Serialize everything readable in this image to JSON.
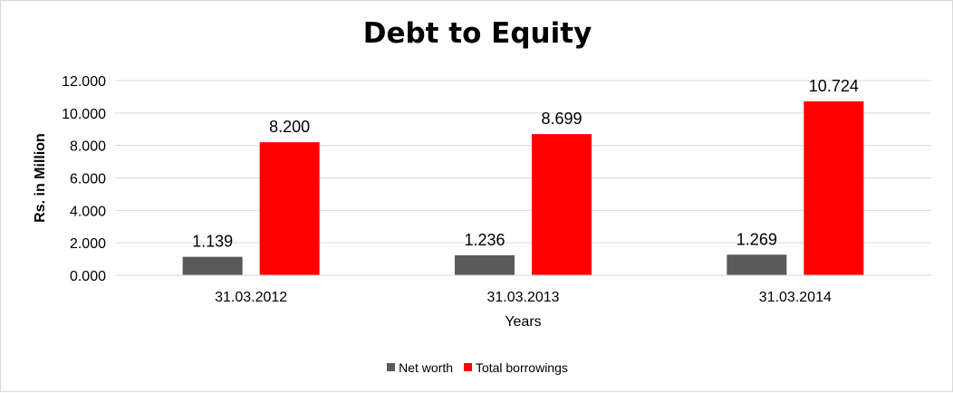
{
  "chart_data": {
    "type": "bar",
    "title": "Debt to Equity",
    "xlabel": "Years",
    "ylabel": "Rs. in Million",
    "categories": [
      "31.03.2012",
      "31.03.2013",
      "31.03.2014"
    ],
    "series": [
      {
        "name": "Net worth",
        "values": [
          1.139,
          1.236,
          1.269
        ],
        "color": "#595959"
      },
      {
        "name": "Total borrowings",
        "values": [
          8.2,
          8.699,
          10.724
        ],
        "color": "#ff0000"
      }
    ],
    "data_labels": [
      [
        "1.139",
        "1.236",
        "1.269"
      ],
      [
        "8.200",
        "8.699",
        "10.724"
      ]
    ],
    "ylim": [
      0,
      12
    ],
    "yticks": [
      "0.000",
      "2.000",
      "4.000",
      "6.000",
      "8.000",
      "10.000",
      "12.000"
    ],
    "grid": true,
    "legend_position": "bottom"
  }
}
